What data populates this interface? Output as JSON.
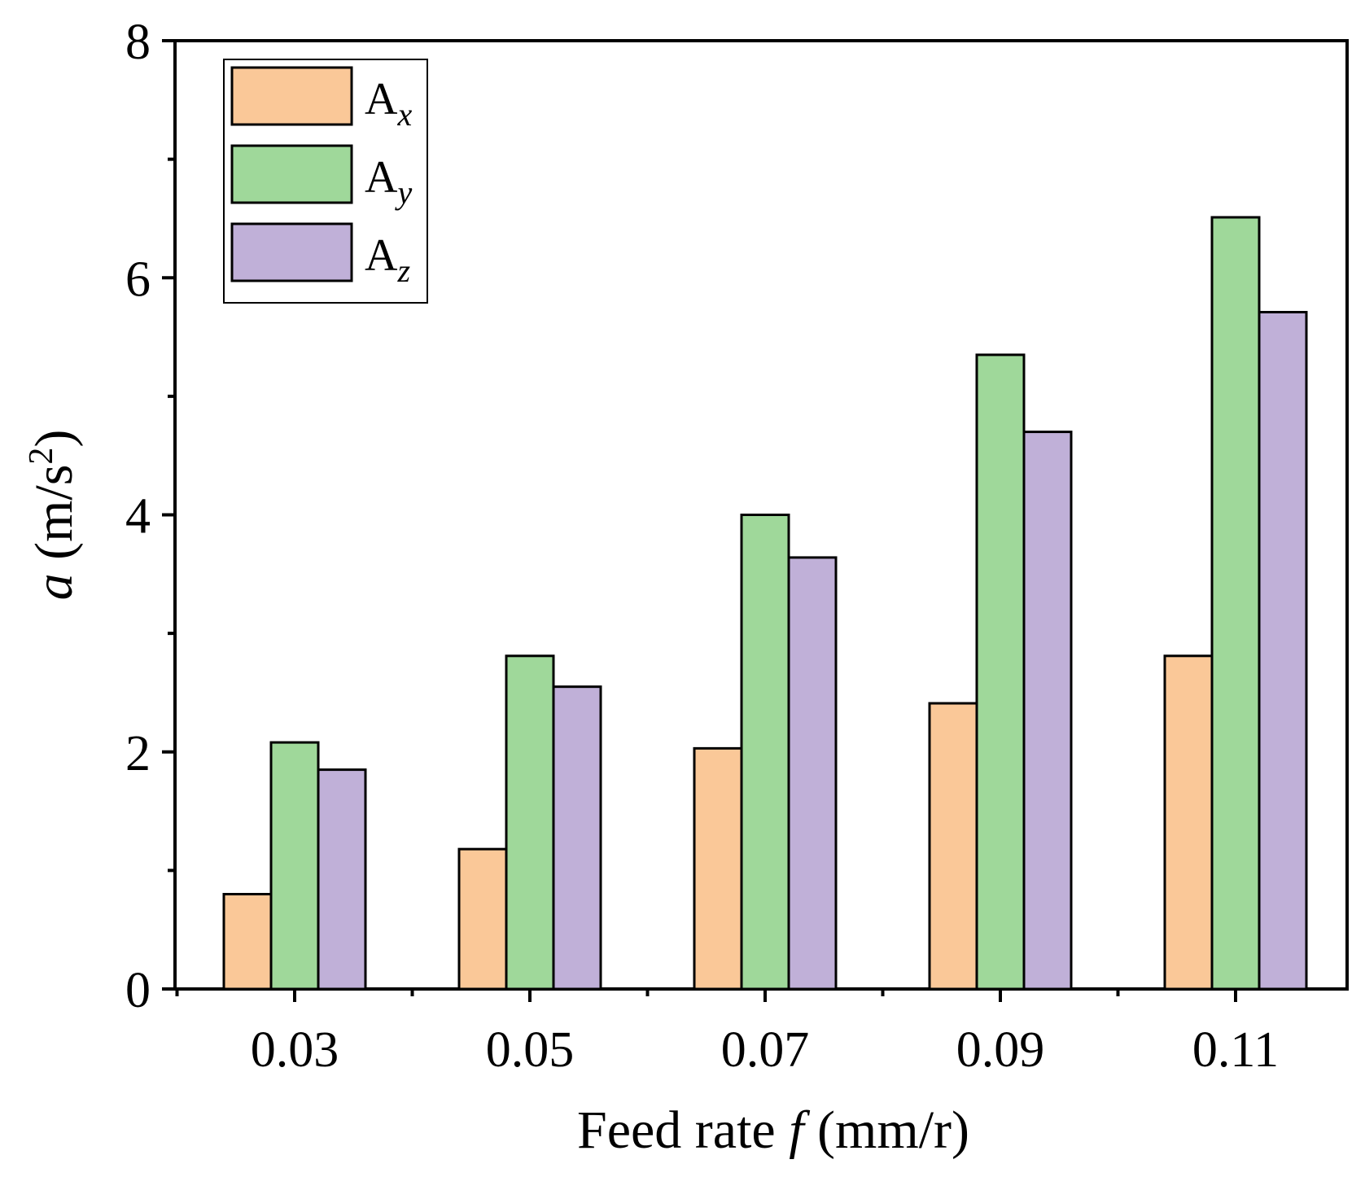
{
  "chart_data": {
    "type": "bar",
    "title": "",
    "xlabel": {
      "prefix": "Feed rate ",
      "italic": "f",
      "suffix": " (mm/r)"
    },
    "ylabel": {
      "italic": "a",
      "suffix": " (m/s",
      "sup": "2",
      "close": ")"
    },
    "categories": [
      "0.03",
      "0.05",
      "0.07",
      "0.09",
      "0.11"
    ],
    "ylim": [
      0,
      8
    ],
    "yticks": [
      "0",
      "2",
      "4",
      "6",
      "8"
    ],
    "series": [
      {
        "name": "A",
        "sub": "x",
        "color": "#FAC898",
        "values": [
          0.8,
          1.18,
          2.03,
          2.41,
          2.81
        ]
      },
      {
        "name": "A",
        "sub": "y",
        "color": "#9FD89A",
        "values": [
          2.08,
          2.81,
          4.0,
          5.35,
          6.51
        ]
      },
      {
        "name": "A",
        "sub": "z",
        "color": "#C0B0D8",
        "values": [
          1.85,
          2.55,
          3.64,
          4.7,
          5.71
        ]
      }
    ],
    "legend_position": "top-left"
  }
}
